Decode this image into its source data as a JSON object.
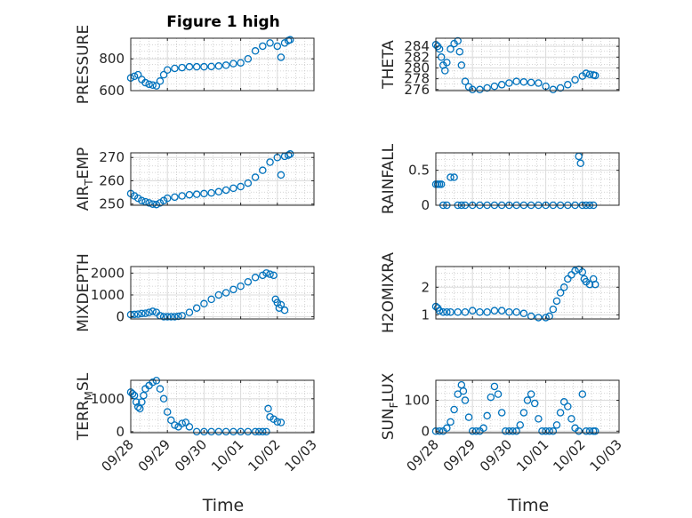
{
  "figure_title": "Figure 1 high",
  "colors": {
    "marker": "#0072BD",
    "axis": "#262626",
    "grid": "#dcdcdc",
    "minor_grid": "#c8c8c8"
  },
  "chart_data": [
    {
      "type": "scatter",
      "panel": "top-left",
      "ylabel": "PRESSURE",
      "ylim": [
        600,
        930
      ],
      "yticks": [
        "600",
        "800"
      ],
      "yticks_values": [
        600,
        800
      ],
      "xlim": [
        0,
        5
      ],
      "x": [
        0.0,
        0.1,
        0.2,
        0.3,
        0.4,
        0.5,
        0.6,
        0.7,
        0.8,
        0.9,
        1.0,
        1.2,
        1.4,
        1.6,
        1.8,
        2.0,
        2.2,
        2.4,
        2.6,
        2.8,
        3.0,
        3.2,
        3.4,
        3.6,
        3.8,
        4.0,
        4.1,
        4.2,
        4.3,
        4.35
      ],
      "y": [
        680,
        690,
        700,
        670,
        650,
        640,
        635,
        630,
        660,
        700,
        730,
        740,
        745,
        750,
        750,
        750,
        752,
        755,
        760,
        770,
        775,
        800,
        850,
        880,
        900,
        880,
        810,
        900,
        915,
        920
      ]
    },
    {
      "type": "scatter",
      "panel": "top-right",
      "ylabel": "THETA",
      "ylim": [
        275.8,
        285.5
      ],
      "yticks": [
        "276",
        "278",
        "280",
        "282",
        "284"
      ],
      "yticks_values": [
        276,
        278,
        280,
        282,
        284
      ],
      "xlim": [
        0,
        5
      ],
      "x": [
        0.0,
        0.05,
        0.1,
        0.15,
        0.2,
        0.25,
        0.3,
        0.4,
        0.5,
        0.6,
        0.65,
        0.7,
        0.8,
        0.9,
        1.0,
        1.2,
        1.4,
        1.6,
        1.8,
        2.0,
        2.2,
        2.4,
        2.6,
        2.8,
        3.0,
        3.2,
        3.4,
        3.6,
        3.8,
        4.0,
        4.1,
        4.2,
        4.3,
        4.35
      ],
      "y": [
        284.3,
        284.0,
        283.5,
        282.0,
        280.5,
        279.5,
        281.0,
        283.5,
        284.5,
        285.0,
        283.0,
        280.5,
        277.5,
        276.5,
        276.0,
        276.0,
        276.3,
        276.6,
        276.9,
        277.2,
        277.5,
        277.4,
        277.3,
        277.2,
        276.6,
        276.0,
        276.3,
        276.9,
        277.8,
        278.5,
        279.0,
        278.8,
        278.7,
        278.6
      ]
    },
    {
      "type": "scatter",
      "panel": "second-left",
      "ylabel": "AIR_TEMP",
      "ylabel_main": "AIR",
      "ylabel_sub": "T",
      "ylabel_rest": "EMP",
      "ylim": [
        249.5,
        272
      ],
      "yticks": [
        "250",
        "260",
        "270"
      ],
      "yticks_values": [
        250,
        260,
        270
      ],
      "xlim": [
        0,
        5
      ],
      "x": [
        0.0,
        0.1,
        0.2,
        0.3,
        0.4,
        0.5,
        0.6,
        0.7,
        0.8,
        0.9,
        1.0,
        1.2,
        1.4,
        1.6,
        1.8,
        2.0,
        2.2,
        2.4,
        2.6,
        2.8,
        3.0,
        3.2,
        3.4,
        3.6,
        3.8,
        4.0,
        4.1,
        4.2,
        4.3,
        4.35
      ],
      "y": [
        254.5,
        253.5,
        252.5,
        251.5,
        251.0,
        250.5,
        250.0,
        249.8,
        250.5,
        251.5,
        252.5,
        253.0,
        253.5,
        254.0,
        254.2,
        254.5,
        254.8,
        255.3,
        256.0,
        256.8,
        257.5,
        259.0,
        261.5,
        264.5,
        268.0,
        270.0,
        262.5,
        270.5,
        271.0,
        271.5
      ]
    },
    {
      "type": "scatter",
      "panel": "second-right",
      "ylabel": "RAINFALL",
      "ylim": [
        0,
        0.75
      ],
      "yticks": [
        "0",
        "0.5"
      ],
      "yticks_values": [
        0,
        0.5
      ],
      "xlim": [
        0,
        5
      ],
      "x": [
        0.0,
        0.05,
        0.1,
        0.15,
        0.2,
        0.3,
        0.4,
        0.5,
        0.6,
        0.7,
        0.8,
        1.0,
        1.2,
        1.4,
        1.6,
        1.8,
        2.0,
        2.2,
        2.4,
        2.6,
        2.8,
        3.0,
        3.2,
        3.4,
        3.6,
        3.8,
        3.9,
        3.95,
        4.0,
        4.1,
        4.2,
        4.3
      ],
      "y": [
        0.3,
        0.3,
        0.3,
        0.3,
        0,
        0,
        0.4,
        0.4,
        0,
        0,
        0,
        0,
        0,
        0,
        0,
        0,
        0,
        0,
        0,
        0,
        0,
        0,
        0,
        0,
        0,
        0,
        0.7,
        0.6,
        0,
        0,
        0,
        0
      ]
    },
    {
      "type": "scatter",
      "panel": "third-left",
      "ylabel": "MIXDEPTH",
      "ylim": [
        -100,
        2300
      ],
      "yticks": [
        "0",
        "1000",
        "2000"
      ],
      "yticks_values": [
        0,
        1000,
        2000
      ],
      "xlim": [
        0,
        5
      ],
      "x": [
        0.0,
        0.1,
        0.2,
        0.3,
        0.4,
        0.5,
        0.6,
        0.7,
        0.8,
        0.9,
        1.0,
        1.1,
        1.2,
        1.3,
        1.4,
        1.6,
        1.8,
        2.0,
        2.2,
        2.4,
        2.6,
        2.8,
        3.0,
        3.2,
        3.4,
        3.6,
        3.7,
        3.8,
        3.9,
        3.95,
        4.0,
        4.05,
        4.1,
        4.2
      ],
      "y": [
        100,
        110,
        120,
        150,
        160,
        200,
        250,
        200,
        50,
        0,
        0,
        0,
        0,
        20,
        50,
        200,
        400,
        600,
        800,
        1000,
        1100,
        1250,
        1400,
        1600,
        1800,
        1900,
        2000,
        1950,
        1900,
        800,
        650,
        400,
        550,
        300
      ]
    },
    {
      "type": "scatter",
      "panel": "third-right",
      "ylabel": "H2OMIXRA",
      "ylim": [
        0.85,
        2.75
      ],
      "yticks": [
        "1",
        "2"
      ],
      "yticks_values": [
        1,
        2
      ],
      "xlim": [
        0,
        5
      ],
      "x": [
        0.0,
        0.05,
        0.1,
        0.2,
        0.3,
        0.4,
        0.6,
        0.8,
        1.0,
        1.2,
        1.4,
        1.6,
        1.8,
        2.0,
        2.2,
        2.4,
        2.6,
        2.8,
        3.0,
        3.1,
        3.2,
        3.3,
        3.4,
        3.5,
        3.6,
        3.7,
        3.8,
        3.9,
        4.0,
        4.05,
        4.1,
        4.2,
        4.3,
        4.35
      ],
      "y": [
        1.3,
        1.25,
        1.15,
        1.1,
        1.1,
        1.1,
        1.1,
        1.1,
        1.15,
        1.1,
        1.1,
        1.15,
        1.15,
        1.1,
        1.1,
        1.05,
        0.95,
        0.9,
        0.9,
        0.95,
        1.2,
        1.5,
        1.8,
        2.0,
        2.3,
        2.45,
        2.6,
        2.65,
        2.55,
        2.3,
        2.2,
        2.1,
        2.3,
        2.1
      ]
    },
    {
      "type": "scatter",
      "panel": "bottom-left",
      "ylabel": "TERR_MSL",
      "ylabel_main": "TERR",
      "ylabel_sub": "M",
      "ylabel_rest": "SL",
      "ylim": [
        -30,
        1560
      ],
      "yticks": [
        "0",
        "1000"
      ],
      "yticks_values": [
        0,
        1000
      ],
      "xlim": [
        0,
        5
      ],
      "x": [
        0.0,
        0.05,
        0.1,
        0.15,
        0.2,
        0.25,
        0.3,
        0.35,
        0.4,
        0.5,
        0.6,
        0.7,
        0.8,
        0.9,
        1.0,
        1.1,
        1.2,
        1.3,
        1.4,
        1.5,
        1.6,
        1.8,
        2.0,
        2.2,
        2.4,
        2.6,
        2.8,
        3.0,
        3.2,
        3.4,
        3.5,
        3.6,
        3.7,
        3.75,
        3.8,
        3.9,
        4.0,
        4.1
      ],
      "y": [
        1200,
        1150,
        1100,
        900,
        750,
        700,
        900,
        1100,
        1300,
        1400,
        1500,
        1550,
        1300,
        1000,
        600,
        350,
        200,
        150,
        250,
        280,
        150,
        0,
        0,
        0,
        0,
        0,
        0,
        0,
        0,
        0,
        0,
        0,
        0,
        700,
        450,
        380,
        300,
        280
      ]
    },
    {
      "type": "scatter",
      "panel": "bottom-right",
      "ylabel": "SUN_FLUX",
      "ylabel_main": "SUN",
      "ylabel_sub": "F",
      "ylabel_rest": "LUX",
      "ylim": [
        -5,
        165
      ],
      "yticks": [
        "0",
        "100"
      ],
      "yticks_values": [
        0,
        100
      ],
      "xlim": [
        0,
        5
      ],
      "x": [
        0.0,
        0.1,
        0.2,
        0.3,
        0.4,
        0.5,
        0.6,
        0.7,
        0.75,
        0.8,
        0.9,
        1.0,
        1.1,
        1.2,
        1.3,
        1.4,
        1.5,
        1.6,
        1.7,
        1.8,
        1.9,
        2.0,
        2.1,
        2.2,
        2.3,
        2.4,
        2.5,
        2.6,
        2.7,
        2.8,
        2.9,
        3.0,
        3.1,
        3.2,
        3.3,
        3.4,
        3.5,
        3.6,
        3.7,
        3.8,
        3.9,
        4.0,
        4.1,
        4.2,
        4.3,
        4.35
      ],
      "y": [
        0,
        0,
        0,
        10,
        30,
        70,
        120,
        150,
        130,
        100,
        45,
        0,
        0,
        0,
        10,
        50,
        110,
        145,
        120,
        60,
        0,
        0,
        0,
        0,
        20,
        60,
        100,
        120,
        90,
        40,
        0,
        0,
        0,
        0,
        20,
        60,
        95,
        80,
        40,
        10,
        0,
        120,
        0,
        0,
        0,
        0
      ]
    }
  ],
  "x_axis": {
    "label": "Time",
    "ticks": [
      "09/28",
      "09/29",
      "09/30",
      "10/01",
      "10/02",
      "10/03"
    ],
    "tick_values": [
      0,
      1,
      2,
      3,
      4,
      5
    ]
  }
}
